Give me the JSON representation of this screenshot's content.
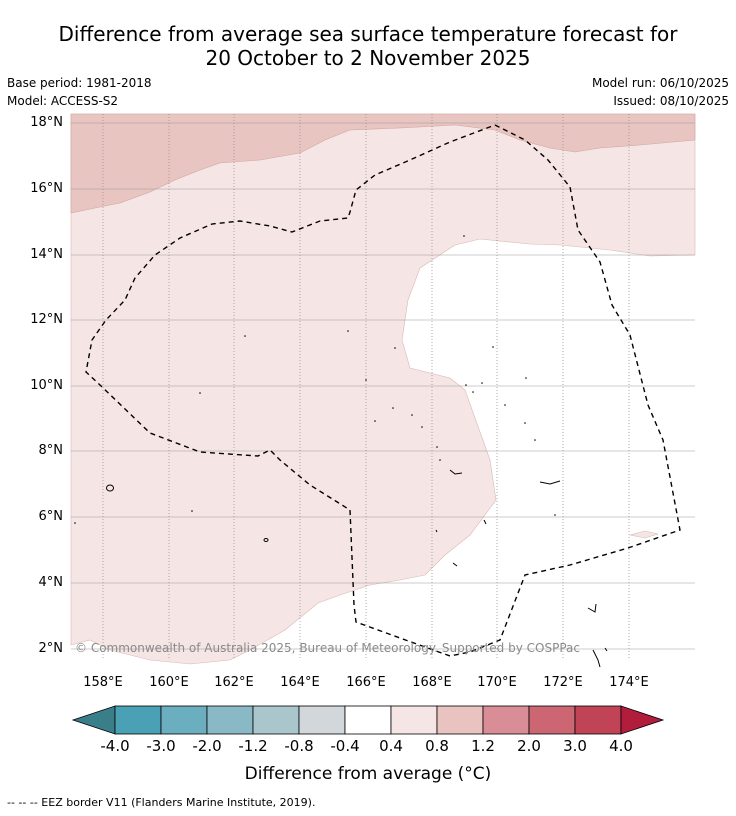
{
  "title_line1": "Difference from average sea surface temperature forecast for",
  "title_line2": "20 October to 2 November 2025",
  "meta": {
    "base_period": "Base period: 1981-2018",
    "model": "Model: ACCESS-S2",
    "model_run": "Model run: 06/10/2025",
    "issued": "Issued: 08/10/2025"
  },
  "lat_labels": [
    "18°N",
    "16°N",
    "14°N",
    "12°N",
    "10°N",
    "8°N",
    "6°N",
    "4°N",
    "2°N"
  ],
  "lon_labels": [
    "158°E",
    "160°E",
    "162°E",
    "164°E",
    "166°E",
    "168°E",
    "170°E",
    "172°E",
    "174°E"
  ],
  "copyright": "© Commonwealth of Australia 2025, Bureau of Meteorology. Supported by COSPPac",
  "colorbar": {
    "ticks": [
      "-4.0",
      "-3.0",
      "-2.0",
      "-1.2",
      "-0.8",
      "-0.4",
      "0.4",
      "0.8",
      "1.2",
      "2.0",
      "3.0",
      "4.0"
    ],
    "colors": [
      "#3a7e8a",
      "#4aa0b5",
      "#6aaec0",
      "#8ab9c6",
      "#a8c6cb",
      "#d1d7da",
      "#ffffff",
      "#f5e5e4",
      "#e8c3c0",
      "#d98d96",
      "#cc6673",
      "#c04455",
      "#b11e3c"
    ],
    "label": "Difference from average (°C)"
  },
  "footer": "--  --  -- EEZ border V11 (Flanders Marine Institute, 2019)."
}
